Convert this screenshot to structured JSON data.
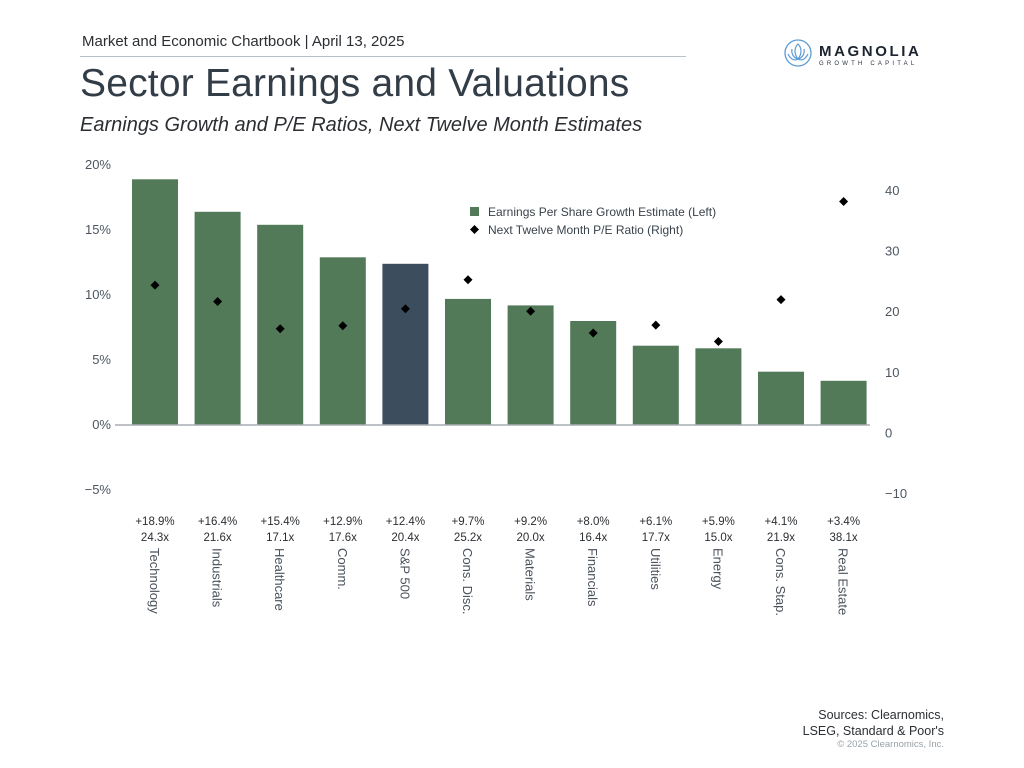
{
  "header": {
    "kicker": "Market and Economic Chartbook | April 13, 2025",
    "title": "Sector Earnings and Valuations",
    "subtitle": "Earnings Growth and P/E Ratios, Next Twelve Month Estimates"
  },
  "logo": {
    "name": "MAGNOLIA",
    "tagline": "GROWTH CAPITAL",
    "icon": "lotus-icon",
    "color": "#5b9bd5"
  },
  "footer": {
    "sources_line1": "Sources: Clearnomics,",
    "sources_line2": "LSEG, Standard & Poor's",
    "copyright": "© 2025 Clearnomics, Inc."
  },
  "chart_data": {
    "type": "bar",
    "title": "Sector Earnings and Valuations",
    "subtitle": "Earnings Growth and P/E Ratios, Next Twelve Month Estimates",
    "categories": [
      "Technology",
      "Industrials",
      "Healthcare",
      "Comm.",
      "S&P 500",
      "Cons. Disc.",
      "Materials",
      "Financials",
      "Utilities",
      "Energy",
      "Cons. Stap.",
      "Real Estate"
    ],
    "series": [
      {
        "name": "Earnings Per Share Growth Estimate (Left)",
        "type": "bar",
        "axis": "left",
        "color": "#527a59",
        "highlight_color": "#3c4e5e",
        "highlight_category": "S&P 500",
        "values": [
          18.9,
          16.4,
          15.4,
          12.9,
          12.4,
          9.7,
          9.2,
          8.0,
          6.1,
          5.9,
          4.1,
          3.4
        ],
        "labels": [
          "+18.9%",
          "+16.4%",
          "+15.4%",
          "+12.9%",
          "+12.4%",
          "+9.7%",
          "+9.2%",
          "+8.0%",
          "+6.1%",
          "+5.9%",
          "+4.1%",
          "+3.4%"
        ]
      },
      {
        "name": "Next Twelve Month P/E Ratio (Right)",
        "type": "scatter",
        "marker": "diamond",
        "axis": "right",
        "color": "#000000",
        "values": [
          24.3,
          21.6,
          17.1,
          17.6,
          20.4,
          25.2,
          20.0,
          16.4,
          17.7,
          15.0,
          21.9,
          38.1
        ],
        "labels": [
          "24.3x",
          "21.6x",
          "17.1x",
          "17.6x",
          "20.4x",
          "25.2x",
          "20.0x",
          "16.4x",
          "17.7x",
          "15.0x",
          "21.9x",
          "38.1x"
        ]
      }
    ],
    "y_left": {
      "ylim": [
        -5,
        20
      ],
      "ticks": [
        20,
        15,
        10,
        5,
        0,
        -5
      ],
      "tick_labels": [
        "20%",
        "15%",
        "10%",
        "5%",
        "0%",
        "−5%"
      ]
    },
    "y_right": {
      "ylim": [
        -10,
        40
      ],
      "ticks": [
        40,
        30,
        20,
        10,
        0,
        -10
      ],
      "tick_labels": [
        "40",
        "30",
        "20",
        "10",
        "0",
        "−10"
      ]
    },
    "xlabel": "",
    "ylabel": "",
    "grid": false,
    "legend_position": "top-right"
  }
}
